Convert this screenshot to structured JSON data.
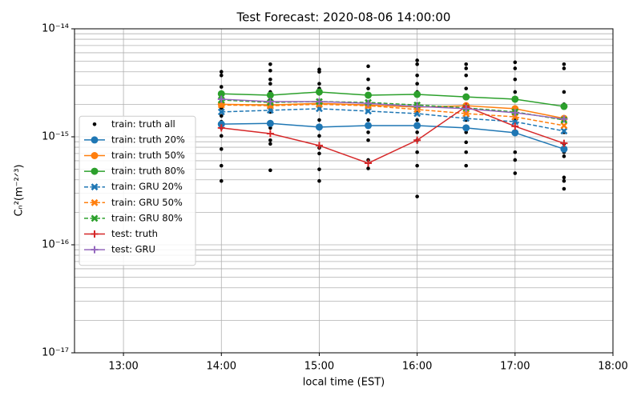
{
  "chart_data": {
    "type": "line",
    "title": "Test Forecast: 2020-08-06 14:00:00",
    "xlabel": "local time (EST)",
    "ylabel": "Cₙ²(m⁻²ᐟ³)",
    "log_y": true,
    "grid": "both",
    "legend": "center left",
    "xlim": [
      12.5,
      18
    ],
    "xticks": [
      {
        "value": 13,
        "label": "13:00"
      },
      {
        "value": 14,
        "label": "14:00"
      },
      {
        "value": 15,
        "label": "15:00"
      },
      {
        "value": 16,
        "label": "16:00"
      },
      {
        "value": 17,
        "label": "17:00"
      },
      {
        "value": 18,
        "label": "18:00"
      }
    ],
    "ylim": [
      1e-17,
      1e-14
    ],
    "yticks": [
      {
        "value": 1e-17,
        "label": "10⁻¹⁷"
      },
      {
        "value": 1e-16,
        "label": "10⁻¹⁶"
      },
      {
        "value": 1e-15,
        "label": "10⁻¹⁵"
      },
      {
        "value": 1e-14,
        "label": "10⁻¹⁴"
      }
    ],
    "scatter": {
      "name": "train: truth all",
      "color": "#000000",
      "x": [
        14,
        14,
        14,
        14,
        14,
        14,
        14,
        14,
        14,
        14,
        14,
        14,
        14.5,
        14.5,
        14.5,
        14.5,
        14.5,
        14.5,
        14.5,
        14.5,
        14.5,
        14.5,
        14.5,
        15,
        15,
        15,
        15,
        15,
        15,
        15,
        15,
        15,
        15,
        15,
        15,
        15,
        15.5,
        15.5,
        15.5,
        15.5,
        15.5,
        15.5,
        15.5,
        15.5,
        15.5,
        16,
        16,
        16,
        16,
        16,
        16,
        16,
        16,
        16,
        16,
        16,
        16,
        16,
        16.5,
        16.5,
        16.5,
        16.5,
        16.5,
        16.5,
        16.5,
        16.5,
        16.5,
        16.5,
        17,
        17,
        17,
        17,
        17,
        17,
        17,
        17,
        17,
        17,
        17.5,
        17.5,
        17.5,
        17.5,
        17.5,
        17.5,
        17.5,
        17.5,
        17.5,
        17.5,
        17.5,
        17.5
      ],
      "values": [
        4e-15,
        3.7e-15,
        2.9e-15,
        2.4e-15,
        1.85e-15,
        1.56e-15,
        1.38e-15,
        1.21e-15,
        1.02e-15,
        7.7e-16,
        5.4e-16,
        3.9e-16,
        4.7e-15,
        4.1e-15,
        3.4e-15,
        3.1e-15,
        2.6e-15,
        2.2e-15,
        1.7e-15,
        1.21e-15,
        9.3e-16,
        8.6e-16,
        4.9e-16,
        4.2e-15,
        4e-15,
        3.1e-15,
        2.8e-15,
        2.5e-15,
        2e-15,
        1.43e-15,
        1.21e-15,
        1.02e-15,
        7.9e-16,
        7e-16,
        5e-16,
        3.9e-16,
        4.5e-15,
        3.4e-15,
        2.8e-15,
        2e-15,
        1.43e-15,
        1.1e-15,
        9.3e-16,
        6.1e-16,
        5.1e-16,
        5.1e-15,
        4.7e-15,
        3.7e-15,
        3.1e-15,
        2.6e-15,
        2e-15,
        1.7e-15,
        1.43e-15,
        1.1e-15,
        9.3e-16,
        7.2e-16,
        5.4e-16,
        2.8e-16,
        4.7e-15,
        4.3e-15,
        3.7e-15,
        2.8e-15,
        2e-15,
        1.43e-15,
        1.1e-15,
        8.9e-16,
        7.2e-16,
        5.4e-16,
        4.9e-15,
        4.3e-15,
        3.4e-15,
        2.6e-15,
        1.85e-15,
        1.43e-15,
        1.1e-15,
        7.2e-16,
        6.1e-16,
        4.6e-16,
        4.7e-15,
        4.3e-15,
        2.6e-15,
        2e-15,
        1.43e-15,
        1.1e-15,
        8.6e-16,
        7.2e-16,
        6.6e-16,
        4.2e-16,
        3.9e-16,
        3.3e-16
      ]
    },
    "x": [
      14,
      14.5,
      15,
      15.5,
      16,
      16.5,
      17,
      17.5
    ],
    "series": [
      {
        "name": "train: truth 20%",
        "color": "#1f77b4",
        "marker": "o",
        "dashed": false,
        "values": [
          1.31e-15,
          1.33e-15,
          1.23e-15,
          1.27e-15,
          1.27e-15,
          1.21e-15,
          1.09e-15,
          7.7e-16
        ]
      },
      {
        "name": "train: truth 50%",
        "color": "#ff7f0e",
        "marker": "o",
        "dashed": false,
        "values": [
          2e-15,
          1.97e-15,
          2.04e-15,
          1.97e-15,
          1.88e-15,
          1.94e-15,
          1.82e-15,
          1.48e-15
        ]
      },
      {
        "name": "train: truth 80%",
        "color": "#2ca02c",
        "marker": "o",
        "dashed": false,
        "values": [
          2.5e-15,
          2.43e-15,
          2.6e-15,
          2.43e-15,
          2.47e-15,
          2.34e-15,
          2.23e-15,
          1.91e-15
        ]
      },
      {
        "name": "train: GRU 20%",
        "color": "#1f77b4",
        "marker": "x",
        "dashed": true,
        "values": [
          1.7e-15,
          1.76e-15,
          1.82e-15,
          1.73e-15,
          1.64e-15,
          1.48e-15,
          1.38e-15,
          1.13e-15
        ]
      },
      {
        "name": "train: GRU 50%",
        "color": "#ff7f0e",
        "marker": "x",
        "dashed": true,
        "values": [
          1.97e-15,
          1.94e-15,
          2e-15,
          1.94e-15,
          1.79e-15,
          1.64e-15,
          1.53e-15,
          1.27e-15
        ]
      },
      {
        "name": "train: GRU 80%",
        "color": "#2ca02c",
        "marker": "x",
        "dashed": true,
        "values": [
          2.19e-15,
          2.08e-15,
          2.12e-15,
          2.08e-15,
          1.97e-15,
          1.85e-15,
          1.7e-15,
          1.43e-15
        ]
      },
      {
        "name": "test: truth",
        "color": "#d62728",
        "marker": "+",
        "dashed": false,
        "values": [
          1.21e-15,
          1.07e-15,
          8.3e-16,
          5.7e-16,
          9.3e-16,
          1.91e-15,
          1.25e-15,
          8.7e-16
        ]
      },
      {
        "name": "test: GRU",
        "color": "#9467bd",
        "marker": "+",
        "dashed": false,
        "values": [
          2.23e-15,
          2.12e-15,
          2.12e-15,
          2.04e-15,
          1.91e-15,
          1.82e-15,
          1.67e-15,
          1.46e-15
        ]
      }
    ]
  }
}
